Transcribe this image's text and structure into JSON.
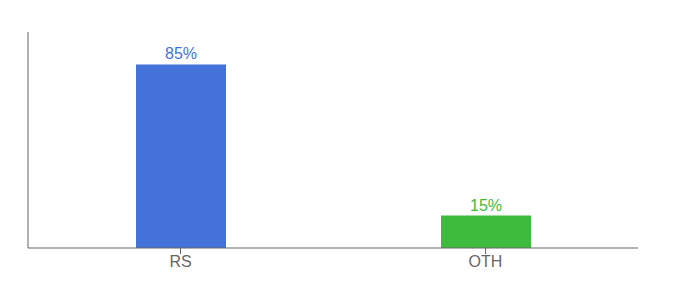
{
  "chart_data": {
    "type": "bar",
    "categories": [
      "RS",
      "OTH"
    ],
    "values": [
      85,
      15
    ],
    "value_labels": [
      "85%",
      "15%"
    ],
    "colors": [
      "#4472db",
      "#3dbb3d"
    ],
    "ylim": [
      0,
      100
    ],
    "data_labels": true,
    "tick_labels": "x",
    "grid": false
  }
}
